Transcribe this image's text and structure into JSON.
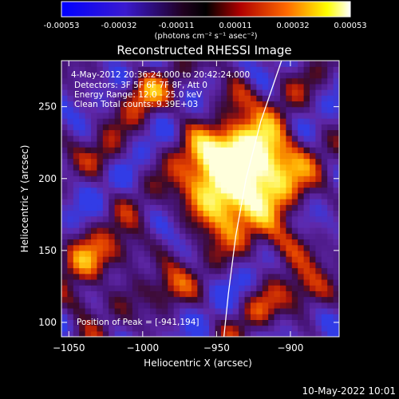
{
  "colorbar": {
    "ticks": [
      "-0.00053",
      "-0.00032",
      "-0.00011",
      "0.00011",
      "0.00032",
      "0.00053"
    ],
    "unit_label": "(photons cm⁻² s⁻¹ asec⁻²)"
  },
  "info": {
    "time": "4-May-2012 20:36:24.000 to 20:42:24.000",
    "detectors": "Detectors: 3F 5F 6F 7F 8F, Att 0",
    "energy": "Energy Range: 12.0 - 25.0 keV",
    "clean": "Clean     Total counts: 9.39E+03",
    "peak": "Position of Peak = [-941,194]"
  },
  "timestamp": "10-May-2022 10:01",
  "chart_data": {
    "type": "heatmap",
    "title": "Reconstructed RHESSI Image",
    "xlabel": "Heliocentric X (arcsec)",
    "ylabel": "Heliocentric Y (arcsec)",
    "xlim": [
      -1055,
      -867
    ],
    "ylim": [
      90,
      282
    ],
    "xticks": [
      -1050,
      -1000,
      -950,
      -900
    ],
    "yticks": [
      100,
      150,
      200,
      250
    ],
    "xtick_labels": [
      "−1050",
      "−1000",
      "−950",
      "−900"
    ],
    "ytick_labels": [
      "100",
      "150",
      "200",
      "250"
    ],
    "value_range": [
      -0.00053,
      0.00053
    ],
    "peak": [
      -941,
      194
    ],
    "limb_points": [
      [
        -945,
        90
      ],
      [
        -942,
        120
      ],
      [
        -937,
        160
      ],
      [
        -930,
        200
      ],
      [
        -920,
        240
      ],
      [
        -906,
        282
      ]
    ],
    "colors": {
      "low": "#0000ff",
      "mid": "#000000",
      "high": "#ffffff"
    }
  }
}
